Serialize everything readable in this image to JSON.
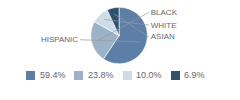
{
  "chart_data": {
    "type": "pie",
    "categories": [
      "HISPANIC",
      "BLACK",
      "WHITE",
      "ASIAN"
    ],
    "values": [
      59.4,
      23.8,
      10.0,
      6.9
    ],
    "value_labels": [
      "59.4%",
      "23.8%",
      "10.0%",
      "6.9%"
    ],
    "colors": [
      "#5b7fa6",
      "#9ab3c8",
      "#ccdce8",
      "#2e5272"
    ],
    "legend": "bottom"
  }
}
